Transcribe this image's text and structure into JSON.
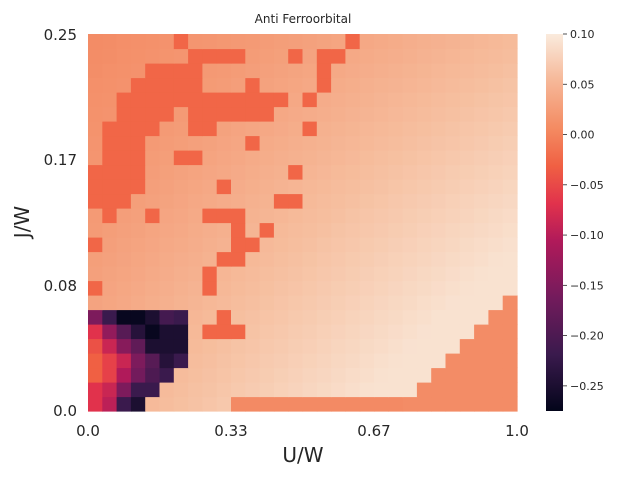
{
  "chart_data": {
    "type": "heatmap",
    "title": "Anti Ferroorbital",
    "xlabel": "U/W",
    "ylabel": "J/W",
    "x_ticks": [
      "0.0",
      "0.33",
      "0.67",
      "1.0"
    ],
    "y_ticks": [
      "0.0",
      "0.08",
      "0.17",
      "0.25"
    ],
    "xlim": [
      0,
      1
    ],
    "ylim": [
      0,
      0.25
    ],
    "grid": false,
    "colormap": "rocket",
    "colorbar": {
      "min": -0.275,
      "max": 0.1,
      "ticks": [
        0.1,
        0.05,
        0.0,
        -0.05,
        -0.1,
        -0.15,
        -0.2,
        -0.25
      ],
      "tick_labels": [
        "0.10",
        "0.05",
        "0.00",
        "−0.05",
        "−0.10",
        "−0.15",
        "−0.20",
        "−0.25"
      ]
    },
    "grid_size": {
      "cols": 30,
      "rows": 26
    },
    "red_cells_note": "value≈-0.02",
    "values_description": "background field: smooth gradient from ~0.0 (upper-left) to ~0.09 (lower-right)",
    "red_cells": [
      [
        6,
        25
      ],
      [
        18,
        25
      ],
      [
        7,
        24
      ],
      [
        8,
        24
      ],
      [
        9,
        24
      ],
      [
        10,
        24
      ],
      [
        14,
        24
      ],
      [
        16,
        24
      ],
      [
        17,
        24
      ],
      [
        4,
        23
      ],
      [
        5,
        23
      ],
      [
        6,
        23
      ],
      [
        7,
        23
      ],
      [
        16,
        23
      ],
      [
        3,
        22
      ],
      [
        4,
        22
      ],
      [
        5,
        22
      ],
      [
        6,
        22
      ],
      [
        7,
        22
      ],
      [
        11,
        22
      ],
      [
        16,
        22
      ],
      [
        2,
        21
      ],
      [
        3,
        21
      ],
      [
        4,
        21
      ],
      [
        5,
        21
      ],
      [
        6,
        21
      ],
      [
        7,
        21
      ],
      [
        8,
        21
      ],
      [
        9,
        21
      ],
      [
        10,
        21
      ],
      [
        11,
        21
      ],
      [
        12,
        21
      ],
      [
        13,
        21
      ],
      [
        15,
        21
      ],
      [
        2,
        20
      ],
      [
        3,
        20
      ],
      [
        4,
        20
      ],
      [
        5,
        20
      ],
      [
        7,
        20
      ],
      [
        8,
        20
      ],
      [
        9,
        20
      ],
      [
        10,
        20
      ],
      [
        11,
        20
      ],
      [
        12,
        20
      ],
      [
        1,
        19
      ],
      [
        2,
        19
      ],
      [
        3,
        19
      ],
      [
        4,
        19
      ],
      [
        7,
        19
      ],
      [
        8,
        19
      ],
      [
        15,
        19
      ],
      [
        1,
        18
      ],
      [
        2,
        18
      ],
      [
        3,
        18
      ],
      [
        11,
        18
      ],
      [
        1,
        17
      ],
      [
        2,
        17
      ],
      [
        3,
        17
      ],
      [
        6,
        17
      ],
      [
        7,
        17
      ],
      [
        0,
        16
      ],
      [
        1,
        16
      ],
      [
        2,
        16
      ],
      [
        3,
        16
      ],
      [
        14,
        16
      ],
      [
        0,
        15
      ],
      [
        1,
        15
      ],
      [
        2,
        15
      ],
      [
        3,
        15
      ],
      [
        9,
        15
      ],
      [
        0,
        14
      ],
      [
        1,
        14
      ],
      [
        2,
        14
      ],
      [
        13,
        14
      ],
      [
        14,
        14
      ],
      [
        1,
        13
      ],
      [
        4,
        13
      ],
      [
        8,
        13
      ],
      [
        9,
        13
      ],
      [
        10,
        13
      ],
      [
        10,
        12
      ],
      [
        12,
        12
      ],
      [
        0,
        11
      ],
      [
        10,
        11
      ],
      [
        11,
        11
      ],
      [
        9,
        10
      ],
      [
        10,
        10
      ],
      [
        8,
        9
      ],
      [
        8,
        8
      ],
      [
        0,
        8
      ],
      [
        0,
        6
      ],
      [
        9,
        6
      ],
      [
        0,
        5
      ],
      [
        8,
        5
      ],
      [
        9,
        5
      ],
      [
        10,
        5
      ],
      [
        0,
        4
      ],
      [
        1,
        4
      ],
      [
        0,
        3
      ],
      [
        1,
        3
      ],
      [
        0,
        2
      ],
      [
        1,
        2
      ],
      [
        15,
        0
      ],
      [
        16,
        0
      ],
      [
        17,
        0
      ]
    ],
    "dark_cells": [
      [
        0,
        0,
        -0.06
      ],
      [
        1,
        0,
        -0.09
      ],
      [
        2,
        0,
        -0.22
      ],
      [
        3,
        0,
        -0.25
      ],
      [
        0,
        1,
        -0.06
      ],
      [
        1,
        1,
        -0.08
      ],
      [
        2,
        1,
        -0.15
      ],
      [
        3,
        1,
        -0.22
      ],
      [
        4,
        1,
        -0.22
      ],
      [
        0,
        2,
        -0.03
      ],
      [
        1,
        2,
        -0.05
      ],
      [
        2,
        2,
        -0.1
      ],
      [
        3,
        2,
        -0.16
      ],
      [
        4,
        2,
        -0.2
      ],
      [
        5,
        2,
        -0.22
      ],
      [
        0,
        3,
        -0.03
      ],
      [
        1,
        3,
        -0.05
      ],
      [
        2,
        3,
        -0.08
      ],
      [
        3,
        3,
        -0.15
      ],
      [
        4,
        3,
        -0.19
      ],
      [
        5,
        3,
        -0.24
      ],
      [
        6,
        3,
        -0.22
      ],
      [
        0,
        4,
        -0.04
      ],
      [
        1,
        4,
        -0.08
      ],
      [
        2,
        4,
        -0.14
      ],
      [
        3,
        4,
        -0.18
      ],
      [
        4,
        4,
        -0.25
      ],
      [
        5,
        4,
        -0.25
      ],
      [
        6,
        4,
        -0.25
      ],
      [
        0,
        5,
        -0.06
      ],
      [
        1,
        5,
        -0.13
      ],
      [
        2,
        5,
        -0.19
      ],
      [
        3,
        5,
        -0.24
      ],
      [
        4,
        5,
        -0.27
      ],
      [
        5,
        5,
        -0.25
      ],
      [
        6,
        5,
        -0.25
      ],
      [
        0,
        6,
        -0.15
      ],
      [
        1,
        6,
        -0.22
      ],
      [
        2,
        6,
        -0.27
      ],
      [
        3,
        6,
        -0.27
      ],
      [
        4,
        6,
        -0.25
      ],
      [
        5,
        6,
        -0.21
      ],
      [
        6,
        6,
        -0.22
      ]
    ],
    "orange_low_x": [
      10,
      11,
      12,
      13,
      14,
      15,
      16,
      17,
      18,
      19,
      20,
      21,
      22,
      23,
      24,
      25,
      26,
      27,
      28,
      29
    ],
    "lower_right_orange": [
      [
        22,
        0
      ],
      [
        23,
        0
      ],
      [
        24,
        0
      ],
      [
        25,
        0
      ],
      [
        26,
        0
      ],
      [
        27,
        0
      ],
      [
        28,
        0
      ],
      [
        29,
        0
      ],
      [
        23,
        1
      ],
      [
        24,
        1
      ],
      [
        25,
        1
      ],
      [
        26,
        1
      ],
      [
        27,
        1
      ],
      [
        28,
        1
      ],
      [
        29,
        1
      ],
      [
        24,
        2
      ],
      [
        25,
        2
      ],
      [
        26,
        2
      ],
      [
        27,
        2
      ],
      [
        28,
        2
      ],
      [
        29,
        2
      ],
      [
        25,
        3
      ],
      [
        26,
        3
      ],
      [
        27,
        3
      ],
      [
        28,
        3
      ],
      [
        29,
        3
      ],
      [
        26,
        4
      ],
      [
        27,
        4
      ],
      [
        28,
        4
      ],
      [
        29,
        4
      ],
      [
        27,
        5
      ],
      [
        28,
        5
      ],
      [
        29,
        5
      ],
      [
        28,
        6
      ],
      [
        29,
        6
      ],
      [
        29,
        7
      ]
    ]
  }
}
